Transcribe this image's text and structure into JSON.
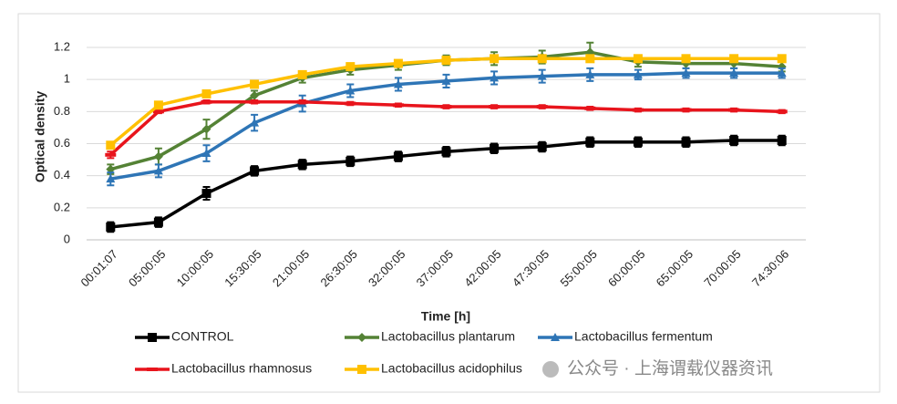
{
  "chart_data": {
    "type": "line",
    "title": null,
    "x_label": "Time [h]",
    "y_label": "Optical density",
    "categories": [
      "00:01:07",
      "05:00:05",
      "10:00:05",
      "15:30:05",
      "21:00:05",
      "26:30:05",
      "32:00:05",
      "37:00:05",
      "42:00:05",
      "47:30:05",
      "55:00:05",
      "60:00:05",
      "65:00:05",
      "70:00:05",
      "74:30:06"
    ],
    "ylim": [
      0,
      1.2
    ],
    "yticks": [
      0,
      {
        "value": 0.2,
        "label": "0.2"
      },
      {
        "value": 0.4,
        "label": "0.4"
      },
      {
        "value": 0.6,
        "label": "0.6"
      },
      {
        "value": 0.8,
        "label": "0.8"
      },
      1,
      {
        "value": 1.2,
        "label": "1.2"
      }
    ],
    "grid": true,
    "series": [
      {
        "name": "CONTROL",
        "color": "#000000",
        "marker": "square",
        "values": [
          0.08,
          0.11,
          0.29,
          0.43,
          0.47,
          0.49,
          0.52,
          0.55,
          0.57,
          0.58,
          0.61,
          0.61,
          0.61,
          0.62,
          0.62
        ],
        "errors": [
          0.03,
          0.03,
          0.04,
          0.03,
          0.03,
          0.03,
          0.03,
          0.03,
          0.03,
          0.03,
          0.03,
          0.03,
          0.03,
          0.03,
          0.03
        ]
      },
      {
        "name": "Lactobacillus plantarum",
        "color": "#548235",
        "marker": "diamond",
        "values": [
          0.44,
          0.52,
          0.69,
          0.9,
          1.01,
          1.06,
          1.09,
          1.12,
          1.13,
          1.14,
          1.17,
          1.11,
          1.1,
          1.1,
          1.08
        ],
        "errors": [
          0.03,
          0.05,
          0.06,
          0.03,
          0.03,
          0.03,
          0.03,
          0.03,
          0.04,
          0.04,
          0.06,
          0.03,
          0.03,
          0.03,
          0.03
        ]
      },
      {
        "name": "Lactobacillus fermentum",
        "color": "#2e75b6",
        "marker": "triangle",
        "values": [
          0.38,
          0.43,
          0.54,
          0.73,
          0.85,
          0.93,
          0.97,
          0.99,
          1.01,
          1.02,
          1.03,
          1.03,
          1.04,
          1.04,
          1.04
        ],
        "errors": [
          0.04,
          0.04,
          0.05,
          0.05,
          0.05,
          0.04,
          0.04,
          0.04,
          0.04,
          0.04,
          0.04,
          0.03,
          0.03,
          0.03,
          0.03
        ]
      },
      {
        "name": "Lactobacillus rhamnosus",
        "color": "#e8141c",
        "marker": "dash",
        "values": [
          0.53,
          0.8,
          0.86,
          0.86,
          0.86,
          0.85,
          0.84,
          0.83,
          0.83,
          0.83,
          0.82,
          0.81,
          0.81,
          0.81,
          0.8
        ],
        "errors": [
          0.02,
          0.01,
          0.01,
          0.01,
          0.01,
          0.01,
          0.01,
          0.01,
          0.01,
          0.01,
          0.01,
          0.01,
          0.01,
          0.01,
          0.01
        ]
      },
      {
        "name": "Lactobacillus acidophilus",
        "color": "#ffc000",
        "marker": "square",
        "values": [
          0.59,
          0.84,
          0.91,
          0.97,
          1.03,
          1.08,
          1.1,
          1.12,
          1.13,
          1.13,
          1.13,
          1.13,
          1.13,
          1.13,
          1.13
        ],
        "errors": [
          0.02,
          0.02,
          0.02,
          0.02,
          0.02,
          0.02,
          0.02,
          0.02,
          0.02,
          0.02,
          0.02,
          0.02,
          0.02,
          0.02,
          0.02
        ]
      }
    ]
  },
  "watermark": "公众号 · 上海谓载仪器资讯"
}
